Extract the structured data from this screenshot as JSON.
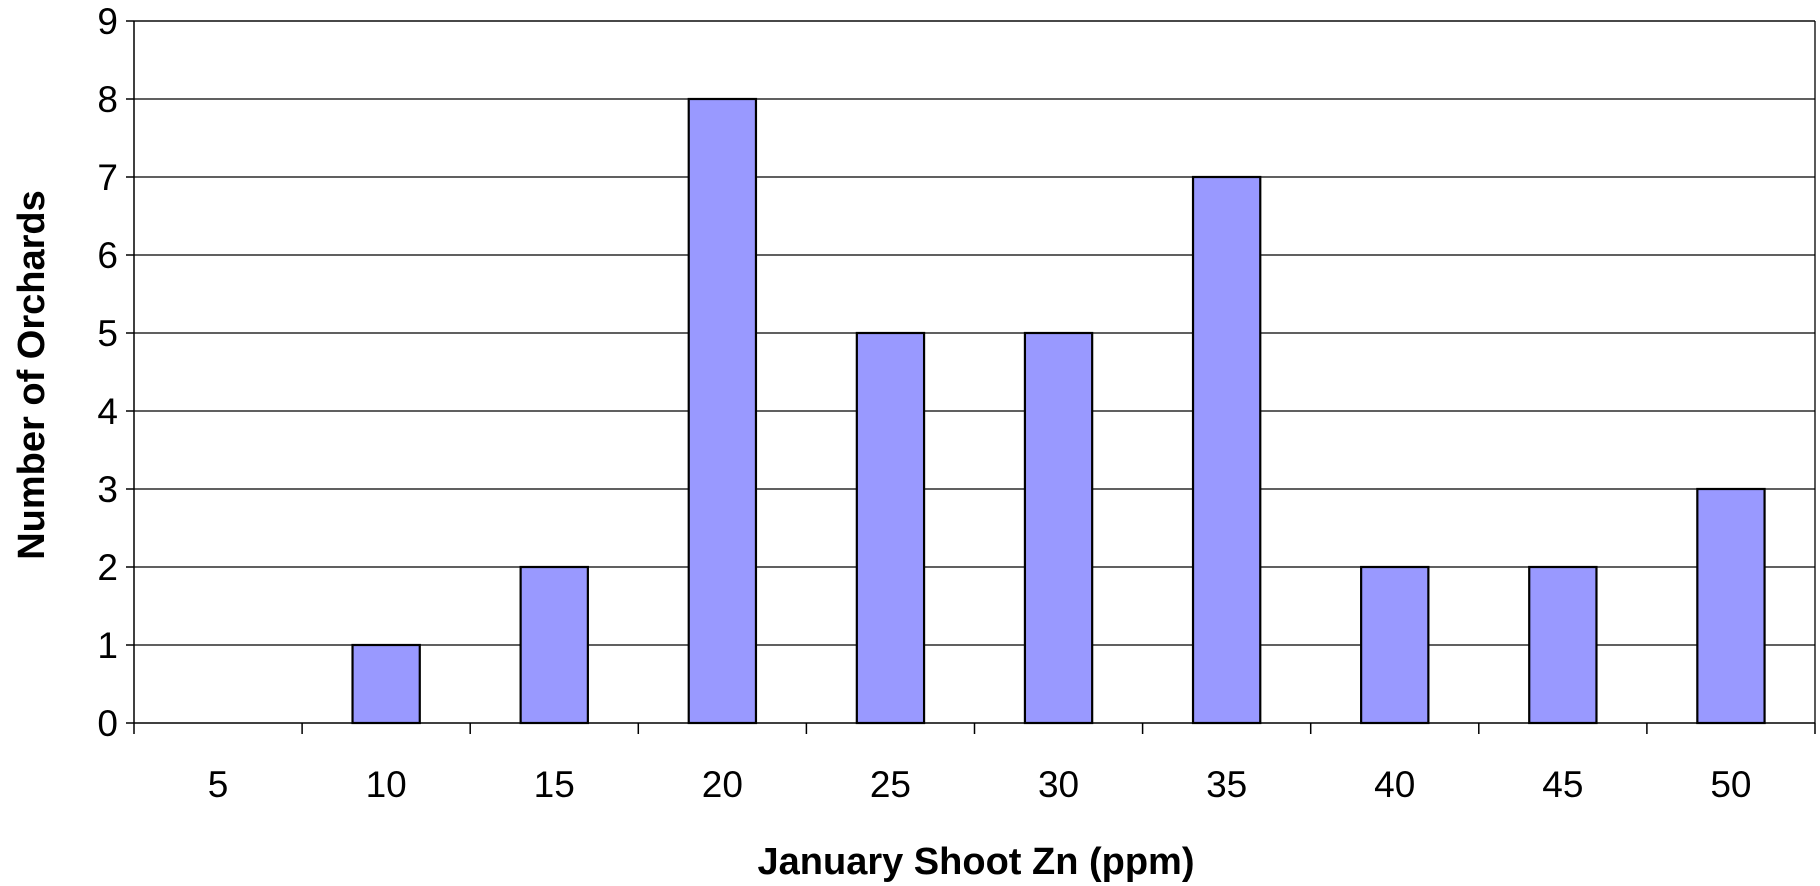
{
  "chart_data": {
    "type": "bar",
    "title": "",
    "xlabel": "January Shoot Zn (ppm)",
    "ylabel": "Number of Orchards",
    "categories": [
      "5",
      "10",
      "15",
      "20",
      "25",
      "30",
      "35",
      "40",
      "45",
      "50"
    ],
    "values": [
      0,
      1,
      2,
      8,
      5,
      5,
      7,
      2,
      2,
      3
    ],
    "ylim": [
      0,
      9
    ],
    "yticks": [
      "0",
      "1",
      "2",
      "3",
      "4",
      "5",
      "6",
      "7",
      "8",
      "9"
    ],
    "grid": true,
    "legend": "none",
    "colors": {
      "bar_fill": "#9999ff",
      "bar_stroke": "#000000",
      "grid": "#000000",
      "background": "#ffffff"
    }
  }
}
